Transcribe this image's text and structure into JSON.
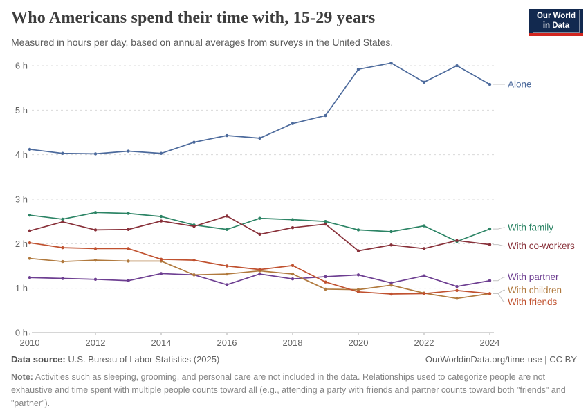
{
  "header": {
    "title": "Who Americans spend their time with, 15-29 years",
    "subtitle": "Measured in hours per day, based on annual averages from surveys in the United States.",
    "logo_line1": "Our World",
    "logo_line2": "in Data",
    "logo_bg": "#12294f",
    "logo_accent": "#d2261f"
  },
  "chart_data": {
    "type": "line",
    "x": [
      2010,
      2011,
      2012,
      2013,
      2014,
      2015,
      2016,
      2017,
      2018,
      2019,
      2020,
      2021,
      2022,
      2023,
      2024
    ],
    "xticks": [
      2010,
      2012,
      2014,
      2016,
      2018,
      2020,
      2022,
      2024
    ],
    "ylim": [
      0,
      6
    ],
    "ytick_step": 1,
    "ytick_suffix": " h",
    "grid": "dashed",
    "legend_position": "right-edge-labels",
    "series": [
      {
        "name": "Alone",
        "color": "#4C6A9C",
        "values": [
          4.12,
          4.03,
          4.02,
          4.08,
          4.03,
          4.28,
          4.43,
          4.37,
          4.7,
          4.88,
          5.92,
          6.06,
          5.63,
          6.0,
          5.58
        ]
      },
      {
        "name": "With family",
        "color": "#2C8465",
        "values": [
          2.64,
          2.55,
          2.7,
          2.68,
          2.61,
          2.42,
          2.32,
          2.57,
          2.54,
          2.5,
          2.31,
          2.27,
          2.4,
          2.05,
          2.33
        ]
      },
      {
        "name": "With co-workers",
        "color": "#883039",
        "values": [
          2.29,
          2.49,
          2.31,
          2.32,
          2.51,
          2.39,
          2.62,
          2.21,
          2.36,
          2.44,
          1.84,
          1.97,
          1.89,
          2.07,
          1.98
        ]
      },
      {
        "name": "With partner",
        "color": "#6D3E91",
        "values": [
          1.24,
          1.22,
          1.2,
          1.17,
          1.33,
          1.3,
          1.08,
          1.32,
          1.21,
          1.26,
          1.3,
          1.12,
          1.28,
          1.04,
          1.17
        ]
      },
      {
        "name": "With children",
        "color": "#B0793D",
        "values": [
          1.67,
          1.6,
          1.63,
          1.61,
          1.61,
          1.3,
          1.32,
          1.39,
          1.32,
          0.98,
          0.97,
          1.07,
          0.89,
          0.77,
          0.88
        ]
      },
      {
        "name": "With friends",
        "color": "#C0512F",
        "values": [
          2.02,
          1.91,
          1.89,
          1.89,
          1.65,
          1.63,
          1.5,
          1.42,
          1.51,
          1.14,
          0.92,
          0.87,
          0.88,
          0.95,
          0.88
        ]
      }
    ]
  },
  "footer": {
    "datasource_label": "Data source:",
    "datasource_text": "U.S. Bureau of Labor Statistics (2025)",
    "link_text": "OurWorldinData.org/time-use | CC BY",
    "note_label": "Note:",
    "note_text": "Activities such as sleeping, grooming, and personal care are not included in the data. Relationships used to categorize people are not exhaustive and time spent with multiple people counts toward all (e.g., attending a party with friends and partner counts toward both \"friends\" and \"partner\")."
  }
}
